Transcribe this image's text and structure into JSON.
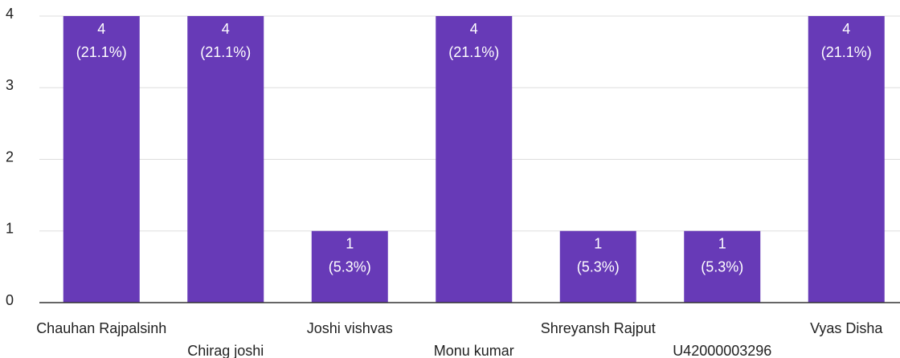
{
  "chart_data": {
    "type": "bar",
    "categories": [
      "Chauhan Rajpalsinh",
      "Chirag joshi",
      "Joshi vishvas",
      "Monu kumar",
      "Shreyansh Rajput",
      "U42000003296",
      "Vyas Disha"
    ],
    "values": [
      4,
      4,
      1,
      4,
      1,
      1,
      4
    ],
    "percent_labels": [
      "(21.1%)",
      "(21.1%)",
      "(5.3%)",
      "(21.1%)",
      "(5.3%)",
      "(5.3%)",
      "(21.1%)"
    ],
    "color": "#673ab7",
    "ylim": [
      0,
      4
    ],
    "yticks": [
      0,
      1,
      2,
      3,
      4
    ],
    "grid": true
  }
}
